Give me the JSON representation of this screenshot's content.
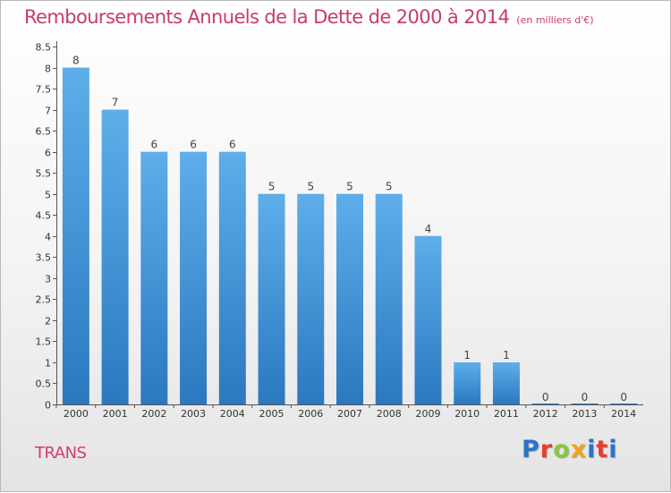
{
  "header": {
    "title": "Remboursements Annuels de la Dette de 2000 à 2014",
    "subtitle": "(en milliers d'€)"
  },
  "footer": {
    "commune": "TRANS",
    "brand": "Proxiti",
    "brand_colors": [
      "#2a73c9",
      "#e2412f",
      "#8cc63f",
      "#f4a21d",
      "#2a73c9",
      "#e2412f",
      "#2a73c9"
    ]
  },
  "chart_data": {
    "type": "bar",
    "categories": [
      "2000",
      "2001",
      "2002",
      "2003",
      "2004",
      "2005",
      "2006",
      "2007",
      "2008",
      "2009",
      "2010",
      "2011",
      "2012",
      "2013",
      "2014"
    ],
    "values": [
      8,
      7,
      6,
      6,
      6,
      5,
      5,
      5,
      5,
      4,
      1,
      1,
      0,
      0,
      0
    ],
    "data_labels": [
      "8",
      "7",
      "6",
      "6",
      "6",
      "5",
      "5",
      "5",
      "5",
      "4",
      "1",
      "1",
      "0",
      "0",
      "0"
    ],
    "ylim": [
      0,
      8.5
    ],
    "yticks": [
      "0",
      "0.5",
      "1",
      "1.5",
      "2",
      "2.5",
      "3",
      "3.5",
      "4",
      "4.5",
      "5",
      "5.5",
      "6",
      "6.5",
      "7",
      "7.5",
      "8",
      "8.5"
    ],
    "grid": false,
    "bar_color_top": "#5eaeea",
    "bar_color_bottom": "#2b78bf",
    "axis_color": "#555555"
  }
}
